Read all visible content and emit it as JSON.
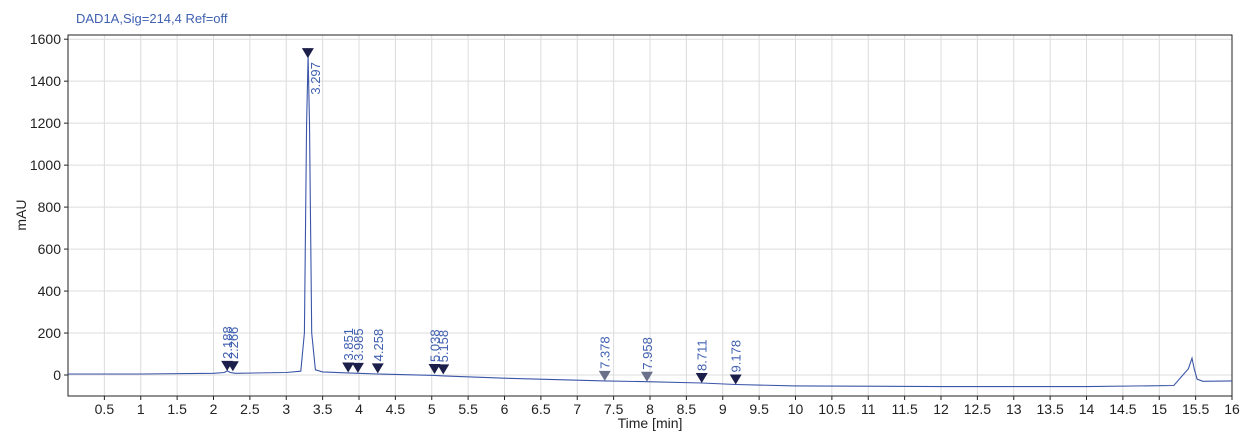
{
  "chart_data": {
    "type": "line",
    "title": "DAD1A,Sig=214,4  Ref=off",
    "xlabel": "Time [min]",
    "ylabel": "mAU",
    "xlim": [
      0,
      16
    ],
    "ylim": [
      -100,
      1620
    ],
    "x_ticks": [
      "0.5",
      "1",
      "1.5",
      "2",
      "2.5",
      "3",
      "3.5",
      "4",
      "4.5",
      "5",
      "5.5",
      "6",
      "6.5",
      "7",
      "7.5",
      "8",
      "8.5",
      "9",
      "9.5",
      "10",
      "10.5",
      "11",
      "11.5",
      "12",
      "12.5",
      "13",
      "13.5",
      "14",
      "14.5",
      "15",
      "15.5",
      "16"
    ],
    "y_ticks": [
      "1600",
      "1400",
      "1200",
      "1000",
      "800",
      "600",
      "400",
      "200",
      "0"
    ],
    "grid": true,
    "series": [
      {
        "x": [
          0,
          1,
          2,
          2.15,
          2.19,
          2.23,
          2.27,
          2.3,
          3.0,
          3.2,
          3.25,
          3.28,
          3.3,
          3.32,
          3.35,
          3.4,
          3.5,
          3.85,
          3.99,
          4.26,
          5.04,
          5.16,
          6,
          7.38,
          7.96,
          8.71,
          9.18,
          10,
          12,
          14,
          15.2,
          15.4,
          15.45,
          15.48,
          15.52,
          15.6,
          16
        ],
        "y": [
          5,
          5,
          8,
          12,
          20,
          12,
          10,
          8,
          12,
          18,
          200,
          1200,
          1520,
          1200,
          200,
          25,
          15,
          10,
          8,
          5,
          -2,
          -4,
          -15,
          -28,
          -32,
          -38,
          -45,
          -52,
          -55,
          -55,
          -50,
          30,
          80,
          30,
          -20,
          -30,
          -28
        ]
      }
    ],
    "peaks": [
      {
        "time": "2.188",
        "x": 2.188,
        "y": 20,
        "faint": false
      },
      {
        "time": "2.266",
        "x": 2.266,
        "y": 18,
        "faint": false
      },
      {
        "time": "3.297",
        "x": 3.297,
        "y": 1510,
        "faint": false
      },
      {
        "time": "3.851",
        "x": 3.851,
        "y": 12,
        "faint": false
      },
      {
        "time": "3.985",
        "x": 3.985,
        "y": 10,
        "faint": false
      },
      {
        "time": "4.258",
        "x": 4.258,
        "y": 8,
        "faint": false
      },
      {
        "time": "5.038",
        "x": 5.038,
        "y": 5,
        "faint": false
      },
      {
        "time": "5.158",
        "x": 5.158,
        "y": 3,
        "faint": false
      },
      {
        "time": "7.378",
        "x": 7.378,
        "y": -28,
        "faint": true
      },
      {
        "time": "7.958",
        "x": 7.958,
        "y": -32,
        "faint": true
      },
      {
        "time": "8.711",
        "x": 8.711,
        "y": -38,
        "faint": false
      },
      {
        "time": "9.178",
        "x": 9.178,
        "y": -45,
        "faint": false
      }
    ],
    "colors": {
      "trace": "#3b55a8",
      "marker": "#1b1f4a",
      "label": "#3f5fb0"
    }
  }
}
